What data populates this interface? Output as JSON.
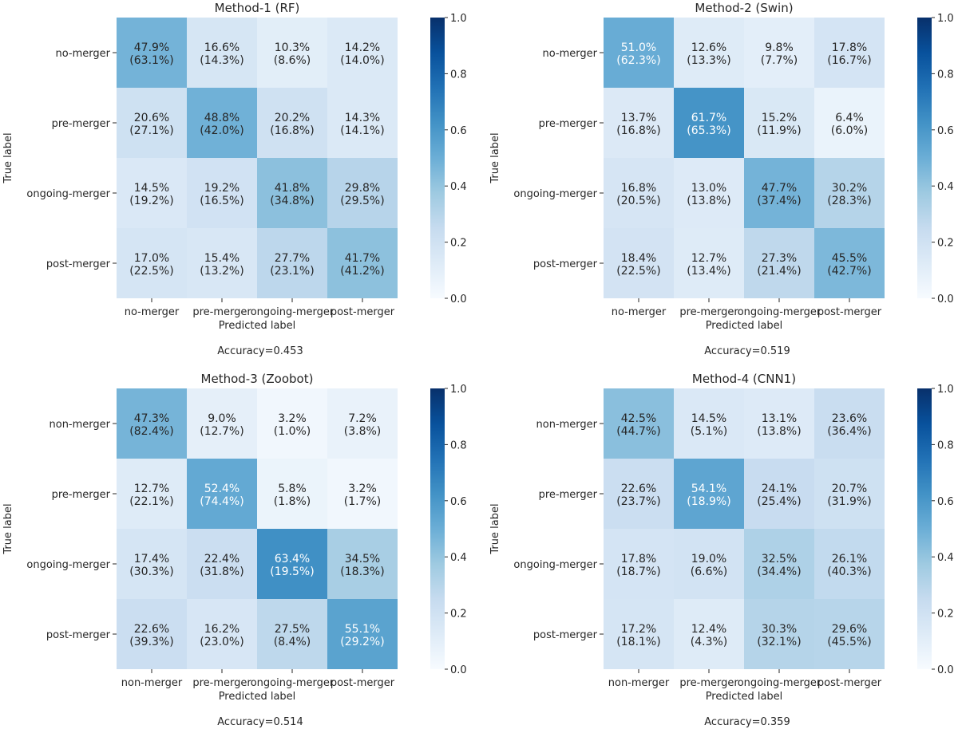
{
  "figure": {
    "colormap": "Blues",
    "low_color": "#f7fbff",
    "high_color": "#08306b"
  },
  "chart_data": [
    {
      "type": "heatmap",
      "title": "Method-1 (RF)",
      "xlabel": "Predicted label",
      "ylabel": "True label",
      "row_labels": [
        "no-merger",
        "pre-merger",
        "ongoing-merger",
        "post-merger"
      ],
      "col_labels": [
        "no-merger",
        "pre-merger",
        "ongoing-merger",
        "post-merger"
      ],
      "values": [
        [
          0.479,
          0.166,
          0.103,
          0.142
        ],
        [
          0.206,
          0.488,
          0.202,
          0.143
        ],
        [
          0.145,
          0.192,
          0.418,
          0.298
        ],
        [
          0.17,
          0.154,
          0.277,
          0.417
        ]
      ],
      "cell_text": [
        [
          "47.9%",
          "16.6%",
          "10.3%",
          "14.2%"
        ],
        [
          "20.6%",
          "48.8%",
          "20.2%",
          "14.3%"
        ],
        [
          "14.5%",
          "19.2%",
          "41.8%",
          "29.8%"
        ],
        [
          "17.0%",
          "15.4%",
          "27.7%",
          "41.7%"
        ]
      ],
      "cell_subtext": [
        [
          "(63.1%)",
          "(14.3%)",
          "(8.6%)",
          "(14.0%)"
        ],
        [
          "(27.1%)",
          "(42.0%)",
          "(16.8%)",
          "(14.1%)"
        ],
        [
          "(19.2%)",
          "(16.5%)",
          "(34.8%)",
          "(29.5%)"
        ],
        [
          "(22.5%)",
          "(13.2%)",
          "(23.1%)",
          "(41.2%)"
        ]
      ],
      "colorbar_ticks": [
        "0.0",
        "0.2",
        "0.4",
        "0.6",
        "0.8",
        "1.0"
      ],
      "vmin": 0,
      "vmax": 1,
      "caption": "Accuracy=0.453"
    },
    {
      "type": "heatmap",
      "title": "Method-2 (Swin)",
      "xlabel": "Predicted label",
      "ylabel": "True label",
      "row_labels": [
        "no-merger",
        "pre-merger",
        "ongoing-merger",
        "post-merger"
      ],
      "col_labels": [
        "no-merger",
        "pre-merger",
        "ongoing-merger",
        "post-merger"
      ],
      "values": [
        [
          0.51,
          0.126,
          0.098,
          0.178
        ],
        [
          0.137,
          0.617,
          0.152,
          0.064
        ],
        [
          0.168,
          0.13,
          0.477,
          0.302
        ],
        [
          0.184,
          0.127,
          0.273,
          0.455
        ]
      ],
      "cell_text": [
        [
          "51.0%",
          "12.6%",
          "9.8%",
          "17.8%"
        ],
        [
          "13.7%",
          "61.7%",
          "15.2%",
          "6.4%"
        ],
        [
          "16.8%",
          "13.0%",
          "47.7%",
          "30.2%"
        ],
        [
          "18.4%",
          "12.7%",
          "27.3%",
          "45.5%"
        ]
      ],
      "cell_subtext": [
        [
          "(62.3%)",
          "(13.3%)",
          "(7.7%)",
          "(16.7%)"
        ],
        [
          "(16.8%)",
          "(65.3%)",
          "(11.9%)",
          "(6.0%)"
        ],
        [
          "(20.5%)",
          "(13.8%)",
          "(37.4%)",
          "(28.3%)"
        ],
        [
          "(22.5%)",
          "(13.4%)",
          "(21.4%)",
          "(42.7%)"
        ]
      ],
      "colorbar_ticks": [
        "0.0",
        "0.2",
        "0.4",
        "0.6",
        "0.8",
        "1.0"
      ],
      "vmin": 0,
      "vmax": 1,
      "caption": "Accuracy=0.519"
    },
    {
      "type": "heatmap",
      "title": "Method-3 (Zoobot)",
      "xlabel": "Predicted label",
      "ylabel": "True label",
      "row_labels": [
        "non-merger",
        "pre-merger",
        "ongoing-merger",
        "post-merger"
      ],
      "col_labels": [
        "non-merger",
        "pre-merger",
        "ongoing-merger",
        "post-merger"
      ],
      "values": [
        [
          0.473,
          0.09,
          0.032,
          0.072
        ],
        [
          0.127,
          0.524,
          0.058,
          0.032
        ],
        [
          0.174,
          0.224,
          0.634,
          0.345
        ],
        [
          0.226,
          0.162,
          0.275,
          0.551
        ]
      ],
      "cell_text": [
        [
          "47.3%",
          "9.0%",
          "3.2%",
          "7.2%"
        ],
        [
          "12.7%",
          "52.4%",
          "5.8%",
          "3.2%"
        ],
        [
          "17.4%",
          "22.4%",
          "63.4%",
          "34.5%"
        ],
        [
          "22.6%",
          "16.2%",
          "27.5%",
          "55.1%"
        ]
      ],
      "cell_subtext": [
        [
          "(82.4%)",
          "(12.7%)",
          "(1.0%)",
          "(3.8%)"
        ],
        [
          "(22.1%)",
          "(74.4%)",
          "(1.8%)",
          "(1.7%)"
        ],
        [
          "(30.3%)",
          "(31.8%)",
          "(19.5%)",
          "(18.3%)"
        ],
        [
          "(39.3%)",
          "(23.0%)",
          "(8.4%)",
          "(29.2%)"
        ]
      ],
      "colorbar_ticks": [
        "0.0",
        "0.2",
        "0.4",
        "0.6",
        "0.8",
        "1.0"
      ],
      "vmin": 0,
      "vmax": 1,
      "caption": "Accuracy=0.514"
    },
    {
      "type": "heatmap",
      "title": "Method-4 (CNN1)",
      "xlabel": "Predicted label",
      "ylabel": "True label",
      "row_labels": [
        "non-merger",
        "pre-merger",
        "ongoing-merger",
        "post-merger"
      ],
      "col_labels": [
        "non-merger",
        "pre-merger",
        "ongoing-merger",
        "post-merger"
      ],
      "values": [
        [
          0.425,
          0.145,
          0.131,
          0.236
        ],
        [
          0.226,
          0.541,
          0.241,
          0.207
        ],
        [
          0.178,
          0.19,
          0.325,
          0.261
        ],
        [
          0.172,
          0.124,
          0.303,
          0.296
        ]
      ],
      "cell_text": [
        [
          "42.5%",
          "14.5%",
          "13.1%",
          "23.6%"
        ],
        [
          "22.6%",
          "54.1%",
          "24.1%",
          "20.7%"
        ],
        [
          "17.8%",
          "19.0%",
          "32.5%",
          "26.1%"
        ],
        [
          "17.2%",
          "12.4%",
          "30.3%",
          "29.6%"
        ]
      ],
      "cell_subtext": [
        [
          "(44.7%)",
          "(5.1%)",
          "(13.8%)",
          "(36.4%)"
        ],
        [
          "(23.7%)",
          "(18.9%)",
          "(25.4%)",
          "(31.9%)"
        ],
        [
          "(18.7%)",
          "(6.6%)",
          "(34.4%)",
          "(40.3%)"
        ],
        [
          "(18.1%)",
          "(4.3%)",
          "(32.1%)",
          "(45.5%)"
        ]
      ],
      "colorbar_ticks": [
        "0.0",
        "0.2",
        "0.4",
        "0.6",
        "0.8",
        "1.0"
      ],
      "vmin": 0,
      "vmax": 1,
      "caption": "Accuracy=0.359"
    }
  ]
}
